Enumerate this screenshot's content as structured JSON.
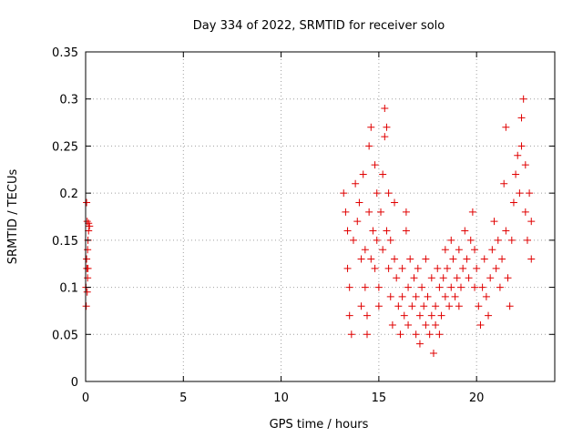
{
  "chart_data": {
    "type": "scatter",
    "title": "Day 334 of 2022, SRMTID for receiver solo",
    "xlabel": "GPS time / hours",
    "ylabel": "SRMTID / TECUs",
    "xlim": [
      0,
      24
    ],
    "ylim": [
      0,
      0.35
    ],
    "x_ticks": [
      0,
      5,
      10,
      15,
      20
    ],
    "x_tick_labels": [
      "0",
      "5",
      "10",
      "15",
      "20"
    ],
    "y_ticks": [
      0,
      0.05,
      0.1,
      0.15,
      0.2,
      0.25,
      0.3,
      0.35
    ],
    "y_tick_labels": [
      "0",
      "0.05",
      "0.1",
      "0.15",
      "0.2",
      "0.25",
      "0.3",
      "0.35"
    ],
    "grid": true,
    "marker": "+",
    "color": "#e00000",
    "series": [
      {
        "name": "solo",
        "points": [
          [
            0.05,
            0.19
          ],
          [
            0.08,
            0.17
          ],
          [
            0.1,
            0.14
          ],
          [
            0.12,
            0.12
          ],
          [
            0.15,
            0.16
          ],
          [
            0.02,
            0.1
          ],
          [
            0.05,
            0.13
          ],
          [
            0.08,
            0.095
          ],
          [
            0.1,
            0.11
          ],
          [
            0.12,
            0.15
          ],
          [
            0.15,
            0.168
          ],
          [
            0.2,
            0.165
          ],
          [
            0.03,
            0.08
          ],
          [
            0.06,
            0.12
          ],
          [
            13.2,
            0.2
          ],
          [
            13.3,
            0.18
          ],
          [
            13.4,
            0.16
          ],
          [
            13.4,
            0.12
          ],
          [
            13.5,
            0.1
          ],
          [
            13.5,
            0.07
          ],
          [
            13.6,
            0.05
          ],
          [
            13.7,
            0.15
          ],
          [
            13.8,
            0.21
          ],
          [
            13.9,
            0.17
          ],
          [
            14.0,
            0.19
          ],
          [
            14.1,
            0.13
          ],
          [
            14.1,
            0.08
          ],
          [
            14.2,
            0.22
          ],
          [
            14.3,
            0.14
          ],
          [
            14.3,
            0.1
          ],
          [
            14.4,
            0.07
          ],
          [
            14.4,
            0.05
          ],
          [
            14.5,
            0.18
          ],
          [
            14.5,
            0.25
          ],
          [
            14.6,
            0.27
          ],
          [
            14.6,
            0.13
          ],
          [
            14.7,
            0.16
          ],
          [
            14.8,
            0.23
          ],
          [
            14.8,
            0.12
          ],
          [
            14.9,
            0.2
          ],
          [
            14.9,
            0.15
          ],
          [
            15.0,
            0.1
          ],
          [
            15.0,
            0.08
          ],
          [
            15.1,
            0.18
          ],
          [
            15.2,
            0.22
          ],
          [
            15.2,
            0.14
          ],
          [
            15.3,
            0.26
          ],
          [
            15.3,
            0.29
          ],
          [
            15.4,
            0.27
          ],
          [
            15.4,
            0.16
          ],
          [
            15.5,
            0.2
          ],
          [
            15.5,
            0.12
          ],
          [
            15.6,
            0.15
          ],
          [
            15.6,
            0.09
          ],
          [
            15.7,
            0.06
          ],
          [
            15.8,
            0.13
          ],
          [
            15.8,
            0.19
          ],
          [
            15.9,
            0.11
          ],
          [
            16.0,
            0.08
          ],
          [
            16.1,
            0.05
          ],
          [
            16.2,
            0.12
          ],
          [
            16.2,
            0.09
          ],
          [
            16.3,
            0.07
          ],
          [
            16.4,
            0.18
          ],
          [
            16.4,
            0.16
          ],
          [
            16.5,
            0.1
          ],
          [
            16.5,
            0.06
          ],
          [
            16.6,
            0.13
          ],
          [
            16.7,
            0.08
          ],
          [
            16.8,
            0.11
          ],
          [
            16.9,
            0.05
          ],
          [
            16.9,
            0.09
          ],
          [
            17.0,
            0.12
          ],
          [
            17.1,
            0.07
          ],
          [
            17.1,
            0.04
          ],
          [
            17.2,
            0.1
          ],
          [
            17.3,
            0.08
          ],
          [
            17.4,
            0.06
          ],
          [
            17.4,
            0.13
          ],
          [
            17.5,
            0.09
          ],
          [
            17.6,
            0.05
          ],
          [
            17.7,
            0.07
          ],
          [
            17.7,
            0.11
          ],
          [
            17.8,
            0.03
          ],
          [
            17.9,
            0.08
          ],
          [
            17.9,
            0.06
          ],
          [
            18.0,
            0.12
          ],
          [
            18.1,
            0.1
          ],
          [
            18.1,
            0.05
          ],
          [
            18.2,
            0.07
          ],
          [
            18.3,
            0.11
          ],
          [
            18.4,
            0.14
          ],
          [
            18.4,
            0.09
          ],
          [
            18.5,
            0.12
          ],
          [
            18.6,
            0.08
          ],
          [
            18.7,
            0.1
          ],
          [
            18.7,
            0.15
          ],
          [
            18.8,
            0.13
          ],
          [
            18.9,
            0.09
          ],
          [
            19.0,
            0.11
          ],
          [
            19.1,
            0.14
          ],
          [
            19.1,
            0.08
          ],
          [
            19.2,
            0.1
          ],
          [
            19.3,
            0.12
          ],
          [
            19.4,
            0.16
          ],
          [
            19.5,
            0.13
          ],
          [
            19.6,
            0.11
          ],
          [
            19.7,
            0.15
          ],
          [
            19.8,
            0.18
          ],
          [
            19.9,
            0.14
          ],
          [
            19.9,
            0.1
          ],
          [
            20.0,
            0.12
          ],
          [
            20.1,
            0.08
          ],
          [
            20.2,
            0.06
          ],
          [
            20.3,
            0.1
          ],
          [
            20.4,
            0.13
          ],
          [
            20.5,
            0.09
          ],
          [
            20.6,
            0.07
          ],
          [
            20.7,
            0.11
          ],
          [
            20.8,
            0.14
          ],
          [
            20.9,
            0.17
          ],
          [
            21.0,
            0.12
          ],
          [
            21.1,
            0.15
          ],
          [
            21.2,
            0.1
          ],
          [
            21.3,
            0.13
          ],
          [
            21.4,
            0.21
          ],
          [
            21.5,
            0.27
          ],
          [
            21.5,
            0.16
          ],
          [
            21.6,
            0.11
          ],
          [
            21.7,
            0.08
          ],
          [
            21.8,
            0.15
          ],
          [
            21.9,
            0.19
          ],
          [
            22.0,
            0.22
          ],
          [
            22.1,
            0.24
          ],
          [
            22.2,
            0.2
          ],
          [
            22.3,
            0.28
          ],
          [
            22.3,
            0.25
          ],
          [
            22.4,
            0.3
          ],
          [
            22.5,
            0.23
          ],
          [
            22.5,
            0.18
          ],
          [
            22.6,
            0.15
          ],
          [
            22.7,
            0.2
          ],
          [
            22.8,
            0.17
          ],
          [
            22.8,
            0.13
          ]
        ]
      }
    ]
  }
}
